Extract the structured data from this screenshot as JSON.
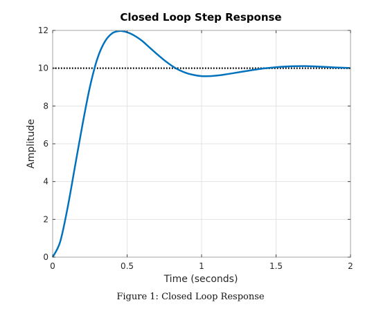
{
  "chart_data": {
    "type": "line",
    "title": "Closed Loop Step Response",
    "xlabel": "Time (seconds)",
    "ylabel": "Amplitude",
    "xlim": [
      0,
      2
    ],
    "ylim": [
      0,
      12
    ],
    "xticks": [
      0,
      0.5,
      1,
      1.5,
      2
    ],
    "xtick_labels": [
      "0",
      "0.5",
      "1",
      "1.5",
      "2"
    ],
    "yticks": [
      0,
      2,
      4,
      6,
      8,
      10,
      12
    ],
    "ytick_labels": [
      "0",
      "2",
      "4",
      "6",
      "8",
      "10",
      "12"
    ],
    "grid": true,
    "series": [
      {
        "color": "#0072bd",
        "style": "solid",
        "x": [
          0,
          0.05,
          0.1,
          0.15,
          0.2,
          0.25,
          0.3,
          0.35,
          0.4,
          0.45,
          0.5,
          0.55,
          0.6,
          0.65,
          0.7,
          0.75,
          0.8,
          0.85,
          0.9,
          0.95,
          1.0,
          1.05,
          1.1,
          1.15,
          1.2,
          1.3,
          1.4,
          1.5,
          1.6,
          1.7,
          1.8,
          1.9,
          2.0
        ],
        "values": [
          0,
          0.8,
          2.6,
          4.8,
          7.0,
          9.0,
          10.5,
          11.4,
          11.85,
          11.97,
          11.9,
          11.72,
          11.45,
          11.1,
          10.75,
          10.42,
          10.13,
          9.9,
          9.74,
          9.64,
          9.58,
          9.58,
          9.61,
          9.66,
          9.72,
          9.85,
          9.97,
          10.05,
          10.1,
          10.11,
          10.08,
          10.04,
          10.01
        ]
      },
      {
        "color": "#000000",
        "style": "dotted",
        "x": [
          0,
          2
        ],
        "values": [
          10,
          10
        ]
      }
    ]
  },
  "caption": "Figure 1: Closed Loop Response"
}
